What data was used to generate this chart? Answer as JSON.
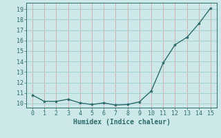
{
  "x": [
    0,
    1,
    2,
    3,
    4,
    5,
    6,
    7,
    8,
    9,
    10,
    11,
    12,
    13,
    14,
    15
  ],
  "y": [
    10.8,
    10.2,
    10.2,
    10.4,
    10.05,
    9.9,
    10.05,
    9.85,
    9.9,
    10.15,
    11.2,
    13.85,
    15.6,
    16.3,
    17.6,
    19.1
  ],
  "line_color": "#2d6b6b",
  "marker": "*",
  "marker_color": "#2d6b6b",
  "marker_size": 3,
  "bg_color": "#cce8e8",
  "hgrid_color": "#a8d0d0",
  "vgrid_color": "#d8b0b0",
  "tick_color": "#2d6b6b",
  "xlabel": "Humidex (Indice chaleur)",
  "xlabel_fontsize": 7,
  "tick_fontsize": 6,
  "ylabel_ticks": [
    10,
    11,
    12,
    13,
    14,
    15,
    16,
    17,
    18,
    19
  ],
  "xticks": [
    0,
    1,
    2,
    3,
    4,
    5,
    6,
    7,
    8,
    9,
    10,
    11,
    12,
    13,
    14,
    15
  ],
  "ylim": [
    9.6,
    19.6
  ],
  "xlim": [
    -0.5,
    15.5
  ],
  "linewidth": 1.0
}
